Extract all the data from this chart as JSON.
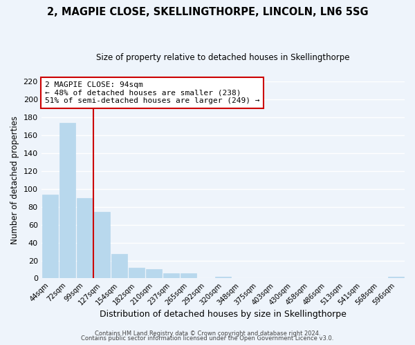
{
  "title1": "2, MAGPIE CLOSE, SKELLINGTHORPE, LINCOLN, LN6 5SG",
  "title2": "Size of property relative to detached houses in Skellingthorpe",
  "xlabel": "Distribution of detached houses by size in Skellingthorpe",
  "ylabel": "Number of detached properties",
  "bar_labels": [
    "44sqm",
    "72sqm",
    "99sqm",
    "127sqm",
    "154sqm",
    "182sqm",
    "210sqm",
    "237sqm",
    "265sqm",
    "292sqm",
    "320sqm",
    "348sqm",
    "375sqm",
    "403sqm",
    "430sqm",
    "458sqm",
    "486sqm",
    "513sqm",
    "541sqm",
    "568sqm",
    "596sqm"
  ],
  "bar_values": [
    94,
    174,
    90,
    74,
    27,
    12,
    10,
    6,
    6,
    0,
    2,
    0,
    0,
    0,
    0,
    0,
    0,
    0,
    0,
    0,
    2
  ],
  "bar_color": "#b8d8ed",
  "bar_edge_color": "#b8d8ed",
  "vline_x": 2.5,
  "vline_color": "#cc0000",
  "annotation_text": "2 MAGPIE CLOSE: 94sqm\n← 48% of detached houses are smaller (238)\n51% of semi-detached houses are larger (249) →",
  "annotation_box_color": "#ffffff",
  "annotation_box_edge": "#cc0000",
  "ylim": [
    0,
    220
  ],
  "yticks": [
    0,
    20,
    40,
    60,
    80,
    100,
    120,
    140,
    160,
    180,
    200,
    220
  ],
  "footer1": "Contains HM Land Registry data © Crown copyright and database right 2024.",
  "footer2": "Contains public sector information licensed under the Open Government Licence v3.0.",
  "bg_color": "#eef4fb",
  "grid_color": "#ffffff",
  "title1_fontsize": 10.5,
  "title2_fontsize": 8.5
}
